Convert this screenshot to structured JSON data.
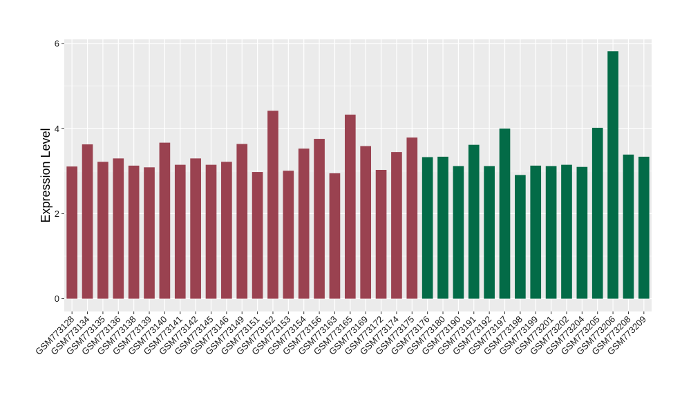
{
  "chart_data": {
    "type": "bar",
    "title": "",
    "xlabel": "",
    "ylabel": "Expression Level",
    "ylim": [
      -0.3,
      6.1
    ],
    "yticks": [
      0,
      2,
      4,
      6
    ],
    "grid": true,
    "legend": "none",
    "colors": {
      "group1": "#9a4250",
      "group2": "#036b47",
      "panel": "#ebebeb",
      "grid": "#ffffff"
    },
    "categories": [
      "GSM773128",
      "GSM773134",
      "GSM773135",
      "GSM773136",
      "GSM773138",
      "GSM773139",
      "GSM773140",
      "GSM773141",
      "GSM773142",
      "GSM773145",
      "GSM773146",
      "GSM773149",
      "GSM773151",
      "GSM773152",
      "GSM773153",
      "GSM773154",
      "GSM773156",
      "GSM773163",
      "GSM773165",
      "GSM773169",
      "GSM773172",
      "GSM773174",
      "GSM773175",
      "GSM773176",
      "GSM773180",
      "GSM773190",
      "GSM773191",
      "GSM773192",
      "GSM773197",
      "GSM773198",
      "GSM773199",
      "GSM773201",
      "GSM773202",
      "GSM773204",
      "GSM773205",
      "GSM773206",
      "GSM773208",
      "GSM773209"
    ],
    "values": [
      3.11,
      3.63,
      3.22,
      3.3,
      3.13,
      3.09,
      3.67,
      3.15,
      3.3,
      3.15,
      3.22,
      3.64,
      2.98,
      4.42,
      3.01,
      3.53,
      3.76,
      2.95,
      4.33,
      3.59,
      3.03,
      3.45,
      3.79,
      3.33,
      3.34,
      3.12,
      3.62,
      3.12,
      4.0,
      2.91,
      3.13,
      3.12,
      3.15,
      3.1,
      4.02,
      5.82,
      3.39,
      3.34
    ],
    "groups": [
      0,
      0,
      0,
      0,
      0,
      0,
      0,
      0,
      0,
      0,
      0,
      0,
      0,
      0,
      0,
      0,
      0,
      0,
      0,
      0,
      0,
      0,
      0,
      1,
      1,
      1,
      1,
      1,
      1,
      1,
      1,
      1,
      1,
      1,
      1,
      1,
      1,
      1
    ]
  }
}
